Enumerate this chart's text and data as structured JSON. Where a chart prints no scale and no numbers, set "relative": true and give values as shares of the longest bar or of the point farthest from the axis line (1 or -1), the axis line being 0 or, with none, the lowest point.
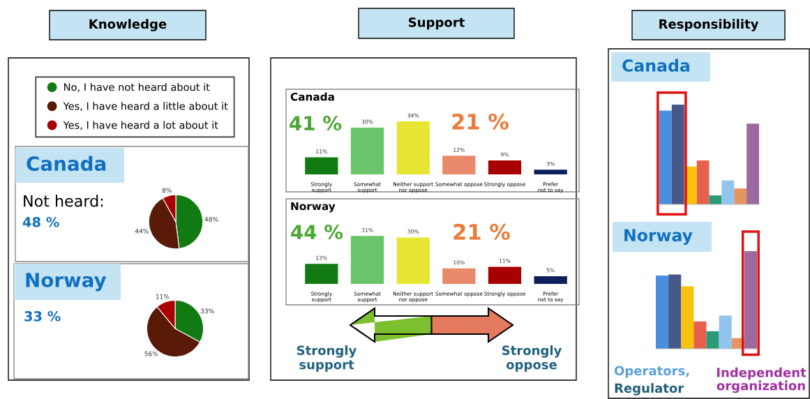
{
  "chart_data": [
    {
      "type": "pie",
      "title": "Canada",
      "categories": [
        "No, I have not heard about it",
        "Yes, I have heard a little about it",
        "Yes, I have heard a lot about it"
      ],
      "values": [
        48,
        44,
        8
      ],
      "colors": [
        "#127a12",
        "#5a1a08",
        "#a80000"
      ],
      "value_labels": [
        "48%",
        "44%",
        "8%"
      ],
      "legend": "top",
      "annotations": [
        "Knowledge",
        "Not heard:",
        "48 %"
      ]
    },
    {
      "type": "pie",
      "title": "Norway",
      "categories": [
        null,
        null,
        null
      ],
      "values": [
        33,
        56,
        11
      ],
      "colors": [
        "#127a12",
        "#5a1a08",
        "#a80000"
      ],
      "value_labels": [
        "33%",
        "56%",
        "11%"
      ],
      "annotations": [
        "33 %"
      ]
    },
    {
      "type": "bar",
      "title": "Canada",
      "categories": [
        "Strongly support",
        "Somewhat support",
        "Neither support nor oppose",
        "Somewhat oppose",
        "Strongly oppose",
        "Prefer not to say"
      ],
      "values": [
        11,
        30,
        34,
        12,
        9,
        3
      ],
      "colors": [
        "#127a12",
        "#6ac46a",
        "#e6e632",
        "#e8896a",
        "#a80000",
        "#0c1f5a"
      ],
      "value_labels": [
        "11%",
        "30%",
        "34%",
        "12%",
        "9%",
        "3%"
      ],
      "annotations": [
        "Support",
        "41 %",
        "21 %"
      ]
    },
    {
      "type": "bar",
      "title": "Norway",
      "categories": [
        "Strongly support",
        "Somewhat support",
        "Neither support nor oppose",
        "Somewhat oppose",
        "Strongly oppose",
        "Prefer not to say"
      ],
      "values": [
        13,
        31,
        30,
        10,
        11,
        5
      ],
      "colors": [
        "#127a12",
        "#6ac46a",
        "#e6e632",
        "#e8896a",
        "#a80000",
        "#0c1f5a"
      ],
      "value_labels": [
        "13%",
        "31%",
        "30%",
        "10%",
        "11%",
        "5%"
      ],
      "annotations": [
        "44 %",
        "21 %",
        "Strongly support",
        "Strongly oppose"
      ]
    },
    {
      "type": "bar",
      "title": "Canada",
      "relative": true,
      "categories": [
        null,
        null,
        null,
        null,
        null,
        null,
        null,
        null
      ],
      "values": [
        0.94,
        1,
        0.38,
        0.44,
        0.09,
        0.24,
        0.16,
        0.81
      ],
      "colors": [
        "#4a8ee0",
        "#46578a",
        "#f8c20c",
        "#e6604e",
        "#2a9a78",
        "#92c4f0",
        "#e59560",
        "#9d6aa0"
      ],
      "annotations": [
        "Responsibility"
      ]
    },
    {
      "type": "bar",
      "title": "Norway",
      "relative": true,
      "categories": [
        null,
        null,
        null,
        null,
        null,
        null,
        null,
        null
      ],
      "values": [
        0.75,
        0.76,
        0.64,
        0.28,
        0.18,
        0.34,
        0.11,
        1
      ],
      "colors": [
        "#4a8ee0",
        "#46578a",
        "#f8c20c",
        "#e6604e",
        "#2a9a78",
        "#92c4f0",
        "#e59560",
        "#9d6aa0"
      ],
      "annotations": [
        "Operators,",
        "Regulator",
        "Independent organization"
      ]
    }
  ]
}
